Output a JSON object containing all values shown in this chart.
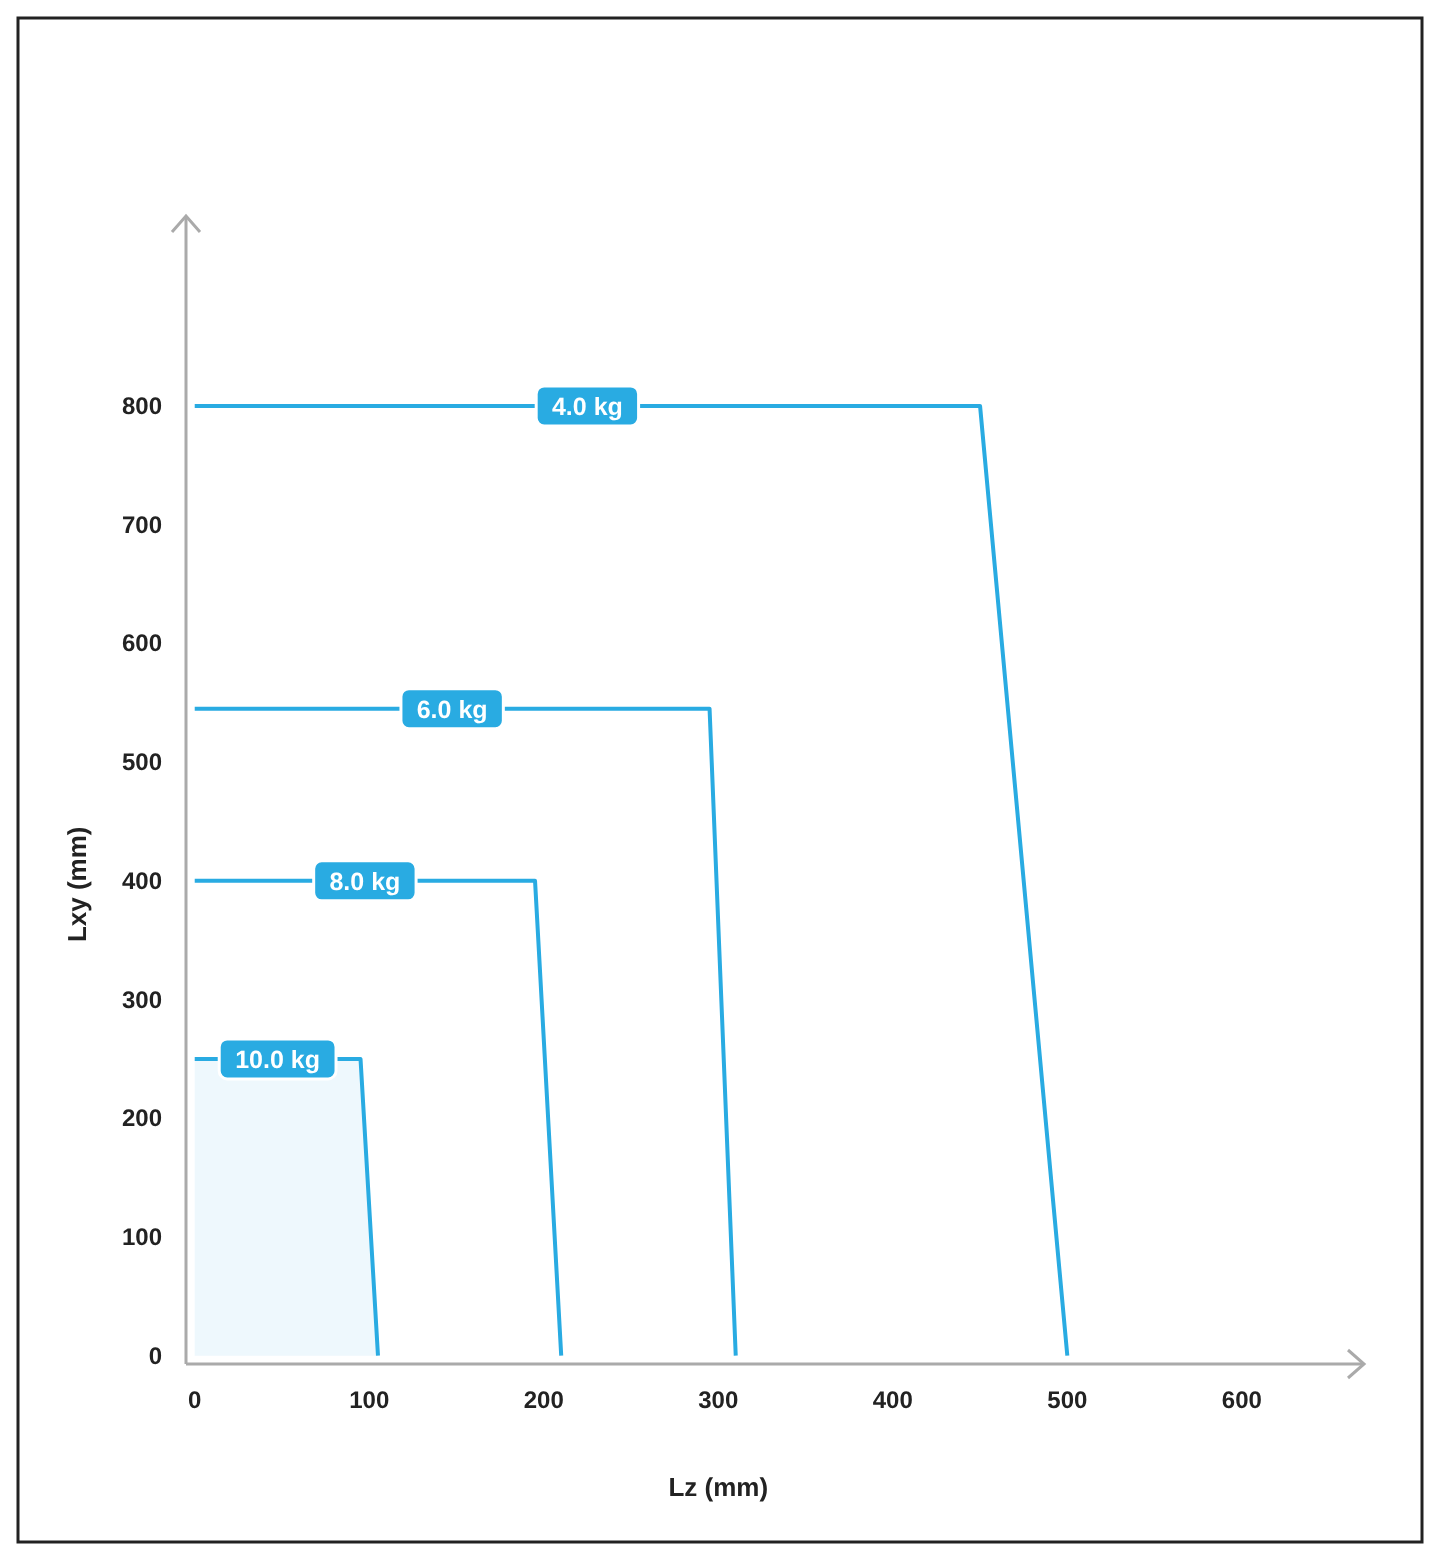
{
  "chart_data": {
    "type": "line",
    "xlabel": "Lz (mm)",
    "ylabel": "Lxy (mm)",
    "xlim": [
      -5,
      670
    ],
    "ylim": [
      -7,
      960
    ],
    "xticks": [
      0,
      100,
      200,
      300,
      400,
      500,
      600
    ],
    "yticks": [
      0,
      100,
      200,
      300,
      400,
      500,
      600,
      700,
      800
    ],
    "grid": false,
    "marker": "none",
    "line_style": "solid",
    "series": [
      {
        "name": "4.0 kg",
        "color": "#29abe2",
        "x": [
          0,
          450,
          500
        ],
        "values": [
          800,
          800,
          0
        ]
      },
      {
        "name": "6.0 kg",
        "color": "#29abe2",
        "x": [
          0,
          295,
          310
        ],
        "values": [
          545,
          545,
          0
        ]
      },
      {
        "name": "8.0 kg",
        "color": "#29abe2",
        "x": [
          0,
          195,
          210
        ],
        "values": [
          400,
          400,
          0
        ]
      },
      {
        "name": "10.0 kg",
        "type": "area",
        "color": "#29abe2",
        "x": [
          0,
          95,
          105
        ],
        "values": [
          250,
          250,
          0
        ]
      }
    ]
  }
}
